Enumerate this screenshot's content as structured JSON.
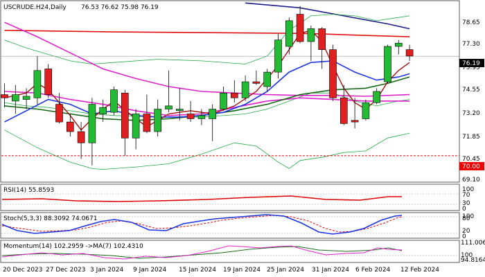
{
  "header": {
    "symbol": "USCRUDE.H24,Daily",
    "ohlc": "76.53 76.62 75.98 76.19"
  },
  "main_panel": {
    "y_ticks": [
      "78.65",
      "77.30",
      "75.95",
      "74.55",
      "73.20",
      "71.85",
      "70.45",
      "69.10"
    ],
    "price_label": "76.19",
    "level_label": "70.00"
  },
  "rsi_panel": {
    "label": "RSI(14) 55.8593",
    "ticks": [
      "100",
      "70",
      "30",
      "0"
    ]
  },
  "stoch_panel": {
    "label": "Stoch(5,3,3) 88.3092 74.0671",
    "ticks": [
      "100",
      "80",
      "20",
      "0"
    ]
  },
  "momentum_panel": {
    "label": "Momentum(14) 102.2959  ->MA(7) 102.4310",
    "ticks": [
      "111.0068",
      "100",
      "94.8164"
    ]
  },
  "x_axis": {
    "labels": [
      "20 Dec 2023",
      "27 Dec 2023",
      "3 Jan 2024",
      "9 Jan 2024",
      "15 Jan 2024",
      "19 Jan 2024",
      "25 Jan 2024",
      "31 Jan 2024",
      "6 Feb 2024",
      "12 Feb 2024"
    ]
  },
  "chart_data": {
    "type": "candlestick",
    "title": "USCRUDE.H24,Daily",
    "ylim": [
      68.4,
      79.6
    ],
    "colors": {
      "bull": "#22bb33",
      "bear": "#e02020",
      "ma_red_long": "#e01010",
      "ma_navy": "#1b1b8a",
      "bollinger": "#22aa44",
      "ma_magenta": "#dd22cc",
      "ma_short_maroon": "#a01010",
      "ma_blue": "#1a33dd",
      "ma_dkgreen": "#116611",
      "level_line": "#ee0000",
      "price_box": "#000000"
    },
    "candles": [
      {
        "o": 73.8,
        "h": 74.5,
        "l": 73.0,
        "c": 73.6
      },
      {
        "o": 73.4,
        "h": 74.4,
        "l": 72.6,
        "c": 73.8
      },
      {
        "o": 73.5,
        "h": 74.2,
        "l": 72.9,
        "c": 73.7
      },
      {
        "o": 73.6,
        "h": 76.2,
        "l": 73.2,
        "c": 75.3
      },
      {
        "o": 75.4,
        "h": 75.7,
        "l": 73.6,
        "c": 73.8
      },
      {
        "o": 73.2,
        "h": 73.9,
        "l": 72.0,
        "c": 72.1
      },
      {
        "o": 72.1,
        "h": 72.6,
        "l": 71.2,
        "c": 71.5
      },
      {
        "o": 71.5,
        "h": 72.1,
        "l": 69.8,
        "c": 70.8
      },
      {
        "o": 70.8,
        "h": 73.6,
        "l": 69.4,
        "c": 73.2
      },
      {
        "o": 72.6,
        "h": 73.5,
        "l": 72.1,
        "c": 73.0
      },
      {
        "o": 72.7,
        "h": 74.3,
        "l": 72.5,
        "c": 74.1
      },
      {
        "o": 73.9,
        "h": 74.1,
        "l": 70.0,
        "c": 71.1
      },
      {
        "o": 71.1,
        "h": 72.9,
        "l": 70.4,
        "c": 72.6
      },
      {
        "o": 72.6,
        "h": 73.8,
        "l": 71.4,
        "c": 71.5
      },
      {
        "o": 71.5,
        "h": 73.5,
        "l": 71.2,
        "c": 72.9
      },
      {
        "o": 72.9,
        "h": 75.3,
        "l": 72.7,
        "c": 73.1
      },
      {
        "o": 72.8,
        "h": 74.2,
        "l": 72.2,
        "c": 72.9
      },
      {
        "o": 72.6,
        "h": 73.4,
        "l": 72.1,
        "c": 72.3
      },
      {
        "o": 72.3,
        "h": 72.9,
        "l": 71.9,
        "c": 72.5
      },
      {
        "o": 72.3,
        "h": 73.2,
        "l": 70.9,
        "c": 72.9
      },
      {
        "o": 72.9,
        "h": 74.3,
        "l": 72.8,
        "c": 73.9
      },
      {
        "o": 73.9,
        "h": 74.7,
        "l": 73.3,
        "c": 73.6
      },
      {
        "o": 73.6,
        "h": 75.0,
        "l": 73.4,
        "c": 74.6
      },
      {
        "o": 74.6,
        "h": 75.3,
        "l": 74.4,
        "c": 74.5
      },
      {
        "o": 74.3,
        "h": 75.4,
        "l": 74.0,
        "c": 75.2
      },
      {
        "o": 75.2,
        "h": 77.6,
        "l": 74.8,
        "c": 77.2
      },
      {
        "o": 76.8,
        "h": 78.6,
        "l": 76.3,
        "c": 78.4
      },
      {
        "o": 78.8,
        "h": 79.3,
        "l": 77.0,
        "c": 77.1
      },
      {
        "o": 77.1,
        "h": 78.1,
        "l": 75.9,
        "c": 77.9
      },
      {
        "o": 77.9,
        "h": 78.0,
        "l": 75.4,
        "c": 76.6
      },
      {
        "o": 76.6,
        "h": 76.9,
        "l": 73.4,
        "c": 73.6
      },
      {
        "o": 73.6,
        "h": 74.4,
        "l": 71.9,
        "c": 72.0
      },
      {
        "o": 72.2,
        "h": 73.6,
        "l": 71.7,
        "c": 72.1
      },
      {
        "o": 72.3,
        "h": 73.5,
        "l": 72.2,
        "c": 73.3
      },
      {
        "o": 73.3,
        "h": 74.2,
        "l": 73.2,
        "c": 74.0
      },
      {
        "o": 74.6,
        "h": 76.9,
        "l": 74.5,
        "c": 76.8
      },
      {
        "o": 76.8,
        "h": 77.2,
        "l": 76.3,
        "c": 77.0
      },
      {
        "o": 76.6,
        "h": 76.9,
        "l": 75.9,
        "c": 76.2
      }
    ],
    "overlays": [
      {
        "key": "ma_red_long",
        "width": 1.6,
        "points": [
          [
            0,
            77.8
          ],
          [
            10,
            77.7
          ],
          [
            20,
            77.65
          ],
          [
            28,
            77.6
          ],
          [
            32,
            77.5
          ],
          [
            37,
            77.4
          ]
        ]
      },
      {
        "key": "ma_navy",
        "width": 1.6,
        "points": [
          [
            22,
            79.5
          ],
          [
            27,
            79.2
          ],
          [
            31,
            78.7
          ],
          [
            35,
            78.2
          ],
          [
            37,
            77.9
          ]
        ]
      },
      {
        "key": "bollinger",
        "width": 0.8,
        "points": [
          [
            0,
            77.2
          ],
          [
            2,
            76.7
          ],
          [
            4,
            76.3
          ],
          [
            6,
            75.9
          ],
          [
            8,
            75.7
          ],
          [
            10,
            75.8
          ],
          [
            14,
            76.0
          ],
          [
            18,
            75.9
          ],
          [
            22,
            75.7
          ],
          [
            24,
            76.2
          ],
          [
            26,
            77.8
          ],
          [
            28,
            78.7
          ],
          [
            30,
            78.8
          ],
          [
            32,
            78.7
          ],
          [
            34,
            78.4
          ],
          [
            36,
            78.6
          ],
          [
            37,
            78.7
          ]
        ]
      },
      {
        "key": "bollinger",
        "width": 0.8,
        "points": [
          [
            0,
            73.3
          ],
          [
            2,
            73.1
          ],
          [
            4,
            73.0
          ],
          [
            6,
            72.8
          ],
          [
            8,
            72.6
          ],
          [
            10,
            72.5
          ],
          [
            14,
            72.4
          ],
          [
            18,
            72.4
          ],
          [
            22,
            72.6
          ],
          [
            24,
            72.9
          ],
          [
            26,
            73.4
          ],
          [
            28,
            73.9
          ],
          [
            30,
            73.9
          ],
          [
            32,
            73.4
          ],
          [
            34,
            73.1
          ],
          [
            36,
            73.4
          ],
          [
            37,
            73.5
          ]
        ]
      },
      {
        "key": "bollinger",
        "width": 0.8,
        "points": [
          [
            0,
            71.6
          ],
          [
            3,
            70.5
          ],
          [
            6,
            69.6
          ],
          [
            8,
            69.2
          ],
          [
            9,
            69.15
          ],
          [
            12,
            69.3
          ],
          [
            15,
            69.5
          ],
          [
            18,
            70.1
          ],
          [
            21,
            70.8
          ],
          [
            23,
            70.6
          ],
          [
            25,
            69.6
          ],
          [
            26,
            69.2
          ],
          [
            27,
            69.7
          ],
          [
            29,
            69.9
          ],
          [
            31,
            70.2
          ],
          [
            33,
            70.3
          ],
          [
            35,
            71.1
          ],
          [
            37,
            71.4
          ]
        ]
      },
      {
        "key": "ma_magenta",
        "width": 1.6,
        "points": [
          [
            0,
            78.3
          ],
          [
            3,
            77.4
          ],
          [
            6,
            76.4
          ],
          [
            9,
            75.4
          ],
          [
            12,
            74.8
          ],
          [
            15,
            74.3
          ],
          [
            18,
            74.0
          ],
          [
            21,
            73.9
          ],
          [
            24,
            73.8
          ],
          [
            27,
            73.75
          ],
          [
            30,
            73.75
          ],
          [
            33,
            73.7
          ],
          [
            37,
            73.8
          ]
        ]
      },
      {
        "key": "ma_magenta",
        "width": 1.6,
        "points": [
          [
            0,
            74.0
          ],
          [
            3,
            73.9
          ],
          [
            6,
            73.5
          ],
          [
            9,
            73.2
          ],
          [
            12,
            72.8
          ],
          [
            15,
            72.5
          ],
          [
            18,
            72.6
          ],
          [
            21,
            73.0
          ],
          [
            24,
            73.4
          ],
          [
            27,
            73.6
          ],
          [
            30,
            73.5
          ],
          [
            33,
            73.4
          ],
          [
            35,
            73.4
          ],
          [
            37,
            73.4
          ]
        ]
      },
      {
        "key": "ma_dkgreen",
        "width": 1.6,
        "points": [
          [
            0,
            73.1
          ],
          [
            3,
            72.9
          ],
          [
            6,
            72.6
          ],
          [
            9,
            72.3
          ],
          [
            12,
            72.2
          ],
          [
            15,
            72.3
          ],
          [
            18,
            72.5
          ],
          [
            21,
            72.8
          ],
          [
            24,
            73.2
          ],
          [
            27,
            73.8
          ],
          [
            30,
            74.1
          ],
          [
            33,
            74.2
          ],
          [
            35,
            74.5
          ],
          [
            37,
            74.9
          ]
        ]
      },
      {
        "key": "ma_blue",
        "width": 1.6,
        "points": [
          [
            0,
            72.1
          ],
          [
            2,
            72.8
          ],
          [
            4,
            73.5
          ],
          [
            6,
            73.2
          ],
          [
            8,
            72.6
          ],
          [
            10,
            72.8
          ],
          [
            12,
            72.5
          ],
          [
            14,
            72.4
          ],
          [
            16,
            72.4
          ],
          [
            18,
            72.5
          ],
          [
            20,
            72.7
          ],
          [
            22,
            73.2
          ],
          [
            24,
            74.0
          ],
          [
            26,
            75.2
          ],
          [
            28,
            75.8
          ],
          [
            30,
            75.9
          ],
          [
            32,
            75.2
          ],
          [
            34,
            74.7
          ],
          [
            36,
            74.9
          ],
          [
            37,
            75.1
          ]
        ]
      },
      {
        "key": "ma_short_maroon",
        "width": 1.4,
        "points": [
          [
            0,
            73.6
          ],
          [
            2,
            73.9
          ],
          [
            3,
            74.5
          ],
          [
            4,
            74.1
          ],
          [
            6,
            72.5
          ],
          [
            7,
            71.6
          ],
          [
            8,
            72.3
          ],
          [
            9,
            72.9
          ],
          [
            10,
            73.4
          ],
          [
            12,
            72.3
          ],
          [
            13,
            71.8
          ],
          [
            15,
            72.6
          ],
          [
            17,
            72.8
          ],
          [
            19,
            72.6
          ],
          [
            21,
            73.1
          ],
          [
            23,
            74.0
          ],
          [
            25,
            75.6
          ],
          [
            27,
            77.6
          ],
          [
            28,
            77.8
          ],
          [
            29,
            77.1
          ],
          [
            30,
            75.6
          ],
          [
            31,
            74.2
          ],
          [
            32,
            73.3
          ],
          [
            33,
            72.9
          ],
          [
            34,
            73.5
          ],
          [
            35,
            74.6
          ],
          [
            36,
            75.3
          ],
          [
            37,
            75.8
          ]
        ]
      }
    ],
    "level": 70.0,
    "last_price": 76.19
  }
}
